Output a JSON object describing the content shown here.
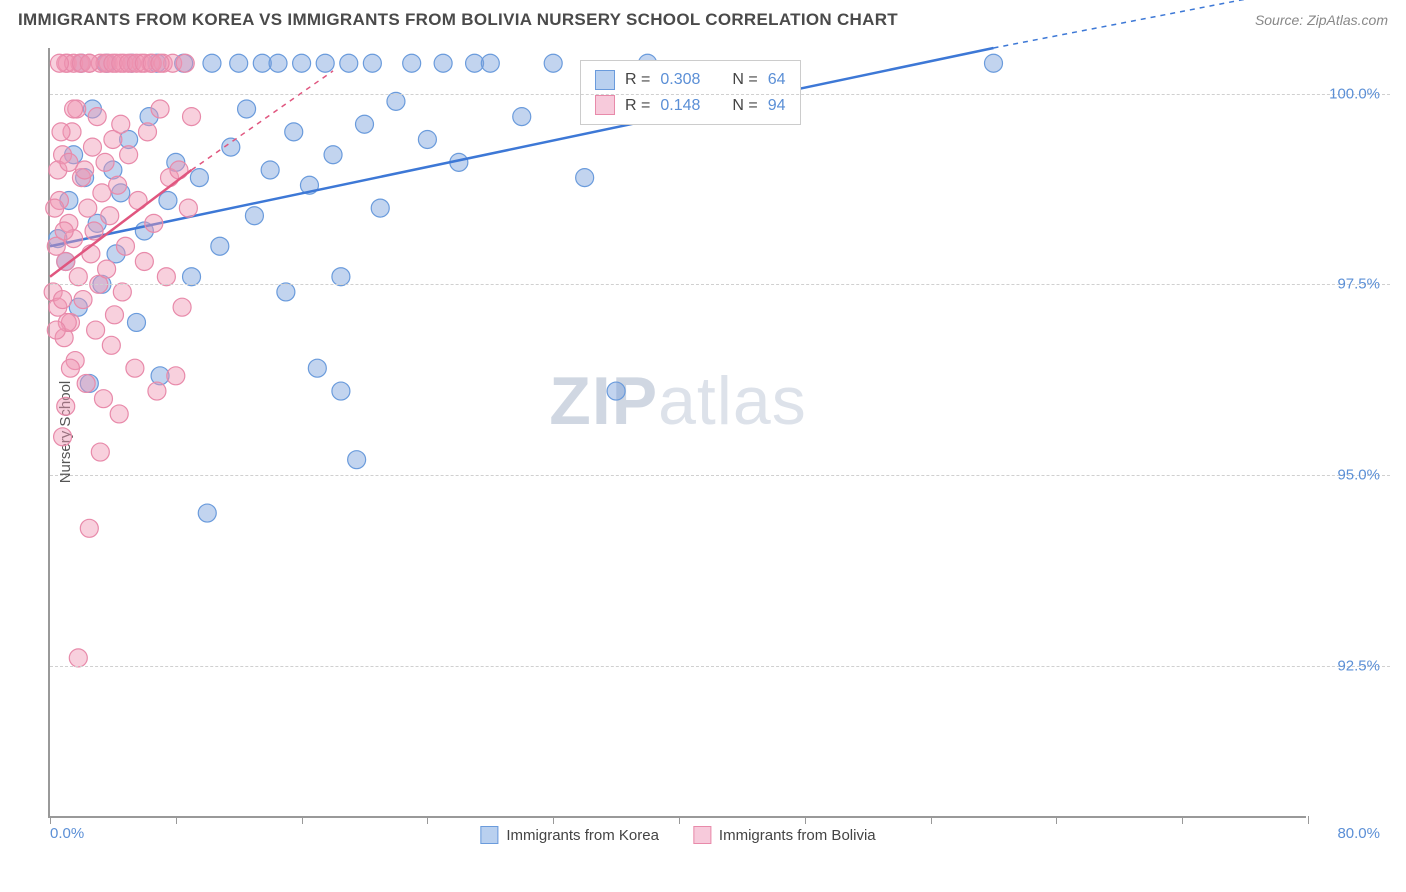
{
  "header": {
    "title": "IMMIGRANTS FROM KOREA VS IMMIGRANTS FROM BOLIVIA NURSERY SCHOOL CORRELATION CHART",
    "source": "Source: ZipAtlas.com"
  },
  "chart": {
    "type": "scatter",
    "ylabel": "Nursery School",
    "xlim": [
      0,
      80
    ],
    "ylim": [
      90.5,
      100.6
    ],
    "x_axis_min_label": "0.0%",
    "x_axis_max_label": "80.0%",
    "yticks": [
      {
        "v": 100.0,
        "label": "100.0%"
      },
      {
        "v": 97.5,
        "label": "97.5%"
      },
      {
        "v": 95.0,
        "label": "95.0%"
      },
      {
        "v": 92.5,
        "label": "92.5%"
      }
    ],
    "xticks_minor": [
      0,
      8,
      16,
      24,
      32,
      40,
      48,
      56,
      64,
      72,
      80
    ],
    "background_color": "#ffffff",
    "grid_color": "#d0d0d0",
    "axis_color": "#999999",
    "series": [
      {
        "name": "Immigrants from Korea",
        "color_fill": "rgba(120,160,220,0.45)",
        "color_stroke": "#6a9bdc",
        "swatch_fill": "#b9d0ef",
        "swatch_border": "#6a9bdc",
        "marker_radius": 9,
        "trend": {
          "x1": 0,
          "y1": 98.0,
          "x2": 60,
          "y2": 100.6,
          "dash_x1": 60,
          "dash_y1": 100.6,
          "dash_x2": 80,
          "dash_y2": 101.4,
          "stroke": "#3d78d6",
          "width": 2.5
        },
        "points": [
          [
            0.5,
            98.1
          ],
          [
            1.0,
            97.8
          ],
          [
            1.2,
            98.6
          ],
          [
            1.5,
            99.2
          ],
          [
            1.8,
            97.2
          ],
          [
            2.0,
            100.4
          ],
          [
            2.2,
            98.9
          ],
          [
            2.5,
            96.2
          ],
          [
            2.7,
            99.8
          ],
          [
            3.0,
            98.3
          ],
          [
            3.3,
            97.5
          ],
          [
            3.6,
            100.4
          ],
          [
            4.0,
            99.0
          ],
          [
            4.2,
            97.9
          ],
          [
            4.5,
            98.7
          ],
          [
            5.0,
            99.4
          ],
          [
            5.2,
            100.4
          ],
          [
            5.5,
            97.0
          ],
          [
            6.0,
            98.2
          ],
          [
            6.3,
            99.7
          ],
          [
            6.8,
            100.4
          ],
          [
            7.0,
            96.3
          ],
          [
            7.5,
            98.6
          ],
          [
            8.0,
            99.1
          ],
          [
            8.5,
            100.4
          ],
          [
            9.0,
            97.6
          ],
          [
            9.5,
            98.9
          ],
          [
            10.0,
            94.5
          ],
          [
            10.3,
            100.4
          ],
          [
            10.8,
            98.0
          ],
          [
            11.5,
            99.3
          ],
          [
            12.0,
            100.4
          ],
          [
            12.5,
            99.8
          ],
          [
            13.0,
            98.4
          ],
          [
            13.5,
            100.4
          ],
          [
            14.0,
            99.0
          ],
          [
            14.5,
            100.4
          ],
          [
            15.0,
            97.4
          ],
          [
            15.5,
            99.5
          ],
          [
            16.0,
            100.4
          ],
          [
            16.5,
            98.8
          ],
          [
            17.0,
            96.4
          ],
          [
            17.5,
            100.4
          ],
          [
            18.0,
            99.2
          ],
          [
            18.5,
            97.6
          ],
          [
            19.0,
            100.4
          ],
          [
            19.5,
            95.2
          ],
          [
            20.0,
            99.6
          ],
          [
            20.5,
            100.4
          ],
          [
            21.0,
            98.5
          ],
          [
            22.0,
            99.9
          ],
          [
            23.0,
            100.4
          ],
          [
            24.0,
            99.4
          ],
          [
            25.0,
            100.4
          ],
          [
            26.0,
            99.1
          ],
          [
            27.0,
            100.4
          ],
          [
            28.0,
            100.4
          ],
          [
            30.0,
            99.7
          ],
          [
            32.0,
            100.4
          ],
          [
            34.0,
            98.9
          ],
          [
            36.0,
            96.1
          ],
          [
            38.0,
            100.4
          ],
          [
            60.0,
            100.4
          ],
          [
            18.5,
            96.1
          ]
        ]
      },
      {
        "name": "Immigrants from Bolivia",
        "color_fill": "rgba(240,150,180,0.45)",
        "color_stroke": "#e88aaa",
        "swatch_fill": "#f7cadb",
        "swatch_border": "#e88aaa",
        "marker_radius": 9,
        "trend": {
          "x1": 0,
          "y1": 97.6,
          "x2": 9,
          "y2": 99.0,
          "dash_x1": 9,
          "dash_y1": 99.0,
          "dash_x2": 18,
          "dash_y2": 100.3,
          "stroke": "#e0567f",
          "width": 2.5
        },
        "points": [
          [
            0.2,
            97.4
          ],
          [
            0.4,
            98.0
          ],
          [
            0.5,
            97.2
          ],
          [
            0.6,
            98.6
          ],
          [
            0.8,
            99.2
          ],
          [
            0.9,
            96.8
          ],
          [
            1.0,
            97.8
          ],
          [
            1.1,
            100.4
          ],
          [
            1.2,
            98.3
          ],
          [
            1.3,
            97.0
          ],
          [
            1.4,
            99.5
          ],
          [
            1.5,
            98.1
          ],
          [
            1.6,
            96.5
          ],
          [
            1.7,
            99.8
          ],
          [
            1.8,
            97.6
          ],
          [
            1.9,
            100.4
          ],
          [
            2.0,
            98.9
          ],
          [
            2.1,
            97.3
          ],
          [
            2.2,
            99.0
          ],
          [
            2.3,
            96.2
          ],
          [
            2.4,
            98.5
          ],
          [
            2.5,
            100.4
          ],
          [
            2.6,
            97.9
          ],
          [
            2.7,
            99.3
          ],
          [
            2.8,
            98.2
          ],
          [
            2.9,
            96.9
          ],
          [
            3.0,
            99.7
          ],
          [
            3.1,
            97.5
          ],
          [
            3.2,
            100.4
          ],
          [
            3.3,
            98.7
          ],
          [
            3.4,
            96.0
          ],
          [
            3.5,
            99.1
          ],
          [
            3.6,
            97.7
          ],
          [
            3.7,
            100.4
          ],
          [
            3.8,
            98.4
          ],
          [
            3.9,
            96.7
          ],
          [
            4.0,
            99.4
          ],
          [
            4.1,
            97.1
          ],
          [
            4.2,
            100.4
          ],
          [
            4.3,
            98.8
          ],
          [
            4.4,
            95.8
          ],
          [
            4.5,
            99.6
          ],
          [
            4.6,
            97.4
          ],
          [
            4.7,
            100.4
          ],
          [
            4.8,
            98.0
          ],
          [
            5.0,
            99.2
          ],
          [
            5.2,
            100.4
          ],
          [
            5.4,
            96.4
          ],
          [
            5.6,
            98.6
          ],
          [
            5.8,
            100.4
          ],
          [
            6.0,
            97.8
          ],
          [
            6.2,
            99.5
          ],
          [
            6.4,
            100.4
          ],
          [
            6.6,
            98.3
          ],
          [
            6.8,
            96.1
          ],
          [
            7.0,
            99.8
          ],
          [
            7.2,
            100.4
          ],
          [
            7.4,
            97.6
          ],
          [
            7.6,
            98.9
          ],
          [
            7.8,
            100.4
          ],
          [
            8.0,
            96.3
          ],
          [
            8.2,
            99.0
          ],
          [
            8.4,
            97.2
          ],
          [
            8.6,
            100.4
          ],
          [
            8.8,
            98.5
          ],
          [
            9.0,
            99.7
          ],
          [
            1.8,
            92.6
          ],
          [
            2.5,
            94.3
          ],
          [
            3.2,
            95.3
          ],
          [
            0.8,
            95.5
          ],
          [
            3.5,
            100.4
          ],
          [
            4.0,
            100.4
          ],
          [
            4.5,
            100.4
          ],
          [
            5.0,
            100.4
          ],
          [
            5.5,
            100.4
          ],
          [
            6.0,
            100.4
          ],
          [
            6.5,
            100.4
          ],
          [
            7.0,
            100.4
          ],
          [
            1.0,
            100.4
          ],
          [
            1.5,
            100.4
          ],
          [
            2.0,
            100.4
          ],
          [
            2.5,
            100.4
          ],
          [
            0.5,
            99.0
          ],
          [
            0.7,
            99.5
          ],
          [
            0.9,
            98.2
          ],
          [
            1.1,
            97.0
          ],
          [
            1.3,
            96.4
          ],
          [
            1.5,
            99.8
          ],
          [
            0.3,
            98.5
          ],
          [
            0.4,
            96.9
          ],
          [
            0.6,
            100.4
          ],
          [
            0.8,
            97.3
          ],
          [
            1.0,
            95.9
          ],
          [
            1.2,
            99.1
          ]
        ]
      }
    ],
    "stats_box": {
      "rows": [
        {
          "swatch_fill": "#b9d0ef",
          "swatch_border": "#6a9bdc",
          "r_label": "R =",
          "r_val": "0.308",
          "n_label": "N =",
          "n_val": "64"
        },
        {
          "swatch_fill": "#f7cadb",
          "swatch_border": "#e88aaa",
          "r_label": "R =",
          "r_val": "0.148",
          "n_label": "N =",
          "n_val": "94"
        }
      ]
    },
    "bottom_legend": [
      {
        "swatch_fill": "#b9d0ef",
        "swatch_border": "#6a9bdc",
        "label": "Immigrants from Korea"
      },
      {
        "swatch_fill": "#f7cadb",
        "swatch_border": "#e88aaa",
        "label": "Immigrants from Bolivia"
      }
    ],
    "watermark": {
      "zip": "ZIP",
      "atlas": "atlas"
    }
  }
}
